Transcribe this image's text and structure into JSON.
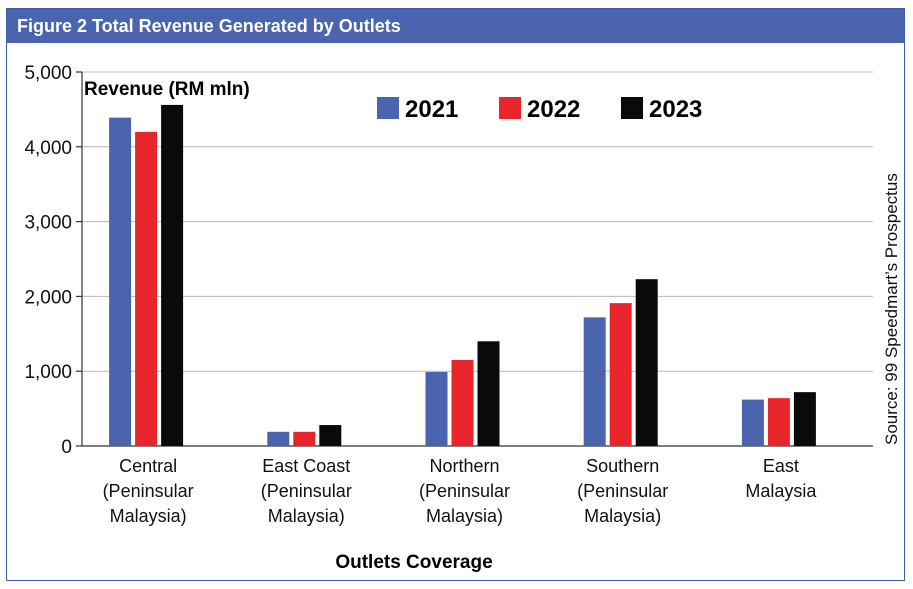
{
  "figure": {
    "title": "Figure 2 Total Revenue Generated by Outlets",
    "source": "Source: 99 Speedmart’s Prospectus"
  },
  "colors": {
    "frame": "#4a65ae",
    "series_2021": "#4a65ae",
    "series_2022": "#e8252b",
    "series_2023": "#0a0a0a"
  },
  "chart_data": {
    "type": "bar",
    "title": "Figure 2 Total Revenue Generated by Outlets",
    "ylabel": "Revenue (RM mln)",
    "xlabel": "Outlets Coverage",
    "ylim": [
      0,
      5000
    ],
    "yticks": [
      "0",
      "1,000",
      "2,000",
      "3,000",
      "4,000",
      "5,000"
    ],
    "grid": true,
    "legend_position": "top-center",
    "categories": [
      [
        "Central",
        "(Peninsular",
        "Malaysia)"
      ],
      [
        "East Coast",
        "(Peninsular",
        "Malaysia)"
      ],
      [
        "Northern",
        "(Peninsular",
        "Malaysia)"
      ],
      [
        "Southern",
        "(Peninsular",
        "Malaysia)"
      ],
      [
        "East",
        "Malaysia"
      ]
    ],
    "series": [
      {
        "name": "2021",
        "color": "#4a65ae",
        "values": [
          4390,
          190,
          990,
          1720,
          620
        ]
      },
      {
        "name": "2022",
        "color": "#e8252b",
        "values": [
          4200,
          190,
          1150,
          1910,
          640
        ]
      },
      {
        "name": "2023",
        "color": "#0a0a0a",
        "values": [
          4560,
          280,
          1400,
          2230,
          720
        ]
      }
    ]
  }
}
